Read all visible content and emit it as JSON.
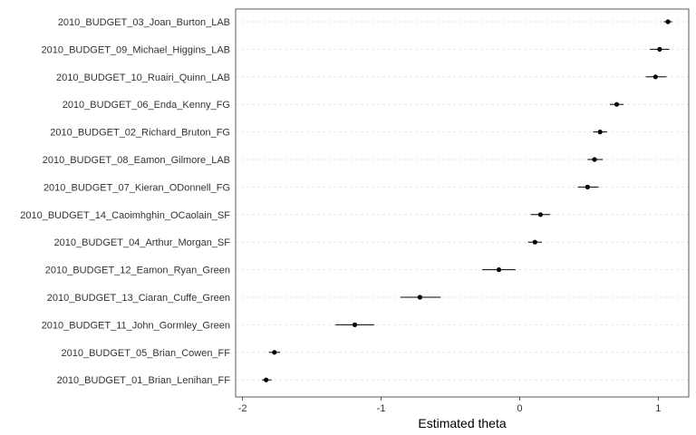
{
  "chart_data": {
    "type": "scatter",
    "xlabel": "Estimated theta",
    "ylabel": "",
    "xlim": [
      -2.05,
      1.22
    ],
    "x_ticks": [
      -2,
      -1,
      0,
      1
    ],
    "grid": "horizontal-dotted",
    "points": [
      {
        "label": "2010_BUDGET_03_Joan_Burton_LAB",
        "theta": 1.07,
        "lower": 1.04,
        "upper": 1.1
      },
      {
        "label": "2010_BUDGET_09_Michael_Higgins_LAB",
        "theta": 1.01,
        "lower": 0.94,
        "upper": 1.08
      },
      {
        "label": "2010_BUDGET_10_Ruairi_Quinn_LAB",
        "theta": 0.98,
        "lower": 0.91,
        "upper": 1.06
      },
      {
        "label": "2010_BUDGET_06_Enda_Kenny_FG",
        "theta": 0.7,
        "lower": 0.65,
        "upper": 0.75
      },
      {
        "label": "2010_BUDGET_02_Richard_Bruton_FG",
        "theta": 0.58,
        "lower": 0.53,
        "upper": 0.63
      },
      {
        "label": "2010_BUDGET_08_Eamon_Gilmore_LAB",
        "theta": 0.54,
        "lower": 0.49,
        "upper": 0.6
      },
      {
        "label": "2010_BUDGET_07_Kieran_ODonnell_FG",
        "theta": 0.49,
        "lower": 0.42,
        "upper": 0.57
      },
      {
        "label": "2010_BUDGET_14_Caoimhghin_OCaolain_SF",
        "theta": 0.15,
        "lower": 0.08,
        "upper": 0.22
      },
      {
        "label": "2010_BUDGET_04_Arthur_Morgan_SF",
        "theta": 0.11,
        "lower": 0.06,
        "upper": 0.16
      },
      {
        "label": "2010_BUDGET_12_Eamon_Ryan_Green",
        "theta": -0.15,
        "lower": -0.27,
        "upper": -0.03
      },
      {
        "label": "2010_BUDGET_13_Ciaran_Cuffe_Green",
        "theta": -0.72,
        "lower": -0.86,
        "upper": -0.57
      },
      {
        "label": "2010_BUDGET_11_John_Gormley_Green",
        "theta": -1.19,
        "lower": -1.33,
        "upper": -1.05
      },
      {
        "label": "2010_BUDGET_05_Brian_Cowen_FF",
        "theta": -1.77,
        "lower": -1.81,
        "upper": -1.73
      },
      {
        "label": "2010_BUDGET_01_Brian_Lenihan_FF",
        "theta": -1.83,
        "lower": -1.86,
        "upper": -1.79
      }
    ]
  }
}
